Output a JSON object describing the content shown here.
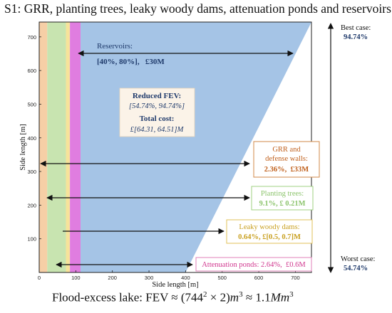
{
  "title": "S1: GRR, planting trees, leaky woody dams, attenuation ponds and reservoirs.",
  "axes": {
    "x_label": "Side length [m]",
    "y_label": "Side length [m]",
    "ticks": [
      "0",
      "100",
      "200",
      "300",
      "400",
      "500",
      "600",
      "700"
    ],
    "range": [
      0,
      744
    ]
  },
  "zones": [
    {
      "name": "GRR",
      "from": 0,
      "to": 22,
      "color": "#f6cfa6"
    },
    {
      "name": "Planting trees",
      "from": 22,
      "to": 73,
      "color": "#c8e4b0"
    },
    {
      "name": "Leaky woody dams",
      "from": 73,
      "to": 84,
      "color": "#f6e39a"
    },
    {
      "name": "Attenuation ponds",
      "from": 84,
      "to": 113,
      "color": "#e07de0"
    },
    {
      "name": "Reservoirs",
      "polygon": [
        [
          113,
          0
        ],
        [
          113,
          744
        ],
        [
          744,
          744
        ],
        [
          400,
          0
        ]
      ],
      "color": "#a5c4e6"
    }
  ],
  "reservoirs": {
    "line1": "Reservoirs:",
    "line2": "[40%, 80%],   £30M"
  },
  "summary": {
    "reduced_label": "Reduced FEV:",
    "reduced_range": "[54.74%, 94.74%]",
    "cost_label": "Total cost:",
    "cost_range": "£[64.31, 64.51]M"
  },
  "callouts": {
    "grr": {
      "line1": "GRR and",
      "line2": "defense walls:",
      "line3": "2.36%,  £33M",
      "color": "#c0601c"
    },
    "trees": {
      "line1": "Planting trees:",
      "line2": "9.1%, £ 0.21M",
      "color": "#8cc46c"
    },
    "dams": {
      "line1": "Leaky woody dams:",
      "line2": "0.64%, £[0.5, 0.7]M",
      "color": "#c9a020"
    },
    "ponds": {
      "text": "Attenuation ponds: 2.64%,  £0.6M",
      "color": "#d0368e"
    }
  },
  "best_case": {
    "label": "Best case:",
    "value": "94.74%"
  },
  "worst_case": {
    "label": "Worst case:",
    "value": "54.74%"
  },
  "equation": {
    "prefix": "Flood-excess lake: FEV ≈ (744",
    "exp": "2",
    "mid": " × 2)",
    "unit": "m",
    "unit_exp": "3",
    "approx": " ≈ 1.1",
    "unit2": "Mm",
    "unit2_exp": "3"
  },
  "colors": {
    "accent_dark": "#1f3a6b",
    "arrow": "#111111"
  }
}
